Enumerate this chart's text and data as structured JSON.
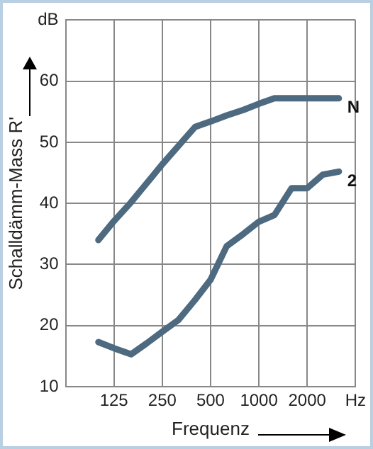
{
  "chart_data": {
    "type": "line",
    "xlabel": "Frequenz",
    "ylabel": "Schalldämm-Mass R'",
    "log": "x",
    "xlim": [
      62.5,
      4000
    ],
    "xticks": [
      125,
      250,
      500,
      1000,
      2000,
      {
        "value": 4000,
        "label": "Hz"
      }
    ],
    "ylim": [
      10,
      70
    ],
    "yticks": [
      10,
      20,
      30,
      40,
      50,
      60,
      {
        "value": 70,
        "label": "dB"
      }
    ],
    "x": [
      100,
      125,
      160,
      200,
      250,
      315,
      400,
      500,
      630,
      800,
      1000,
      1250,
      1600,
      2000,
      2500,
      3150
    ],
    "series": [
      {
        "name": "N",
        "color": "#4d6a80",
        "values": [
          34,
          37.1,
          40.2,
          43.3,
          46.4,
          49.4,
          52.5,
          53.4,
          54.4,
          55.3,
          56.3,
          57.2,
          57.2,
          57.2,
          57.2,
          57.2
        ]
      },
      {
        "name": "2",
        "color": "#4d6a80",
        "values": [
          17.3,
          16.3,
          15.3,
          17.1,
          19,
          20.9,
          24.2,
          27.5,
          33,
          35,
          37,
          38.1,
          42.5,
          42.5,
          44.7,
          45.2
        ]
      }
    ],
    "grid": true,
    "legend": false,
    "marker": "none",
    "line_style": "solid"
  }
}
